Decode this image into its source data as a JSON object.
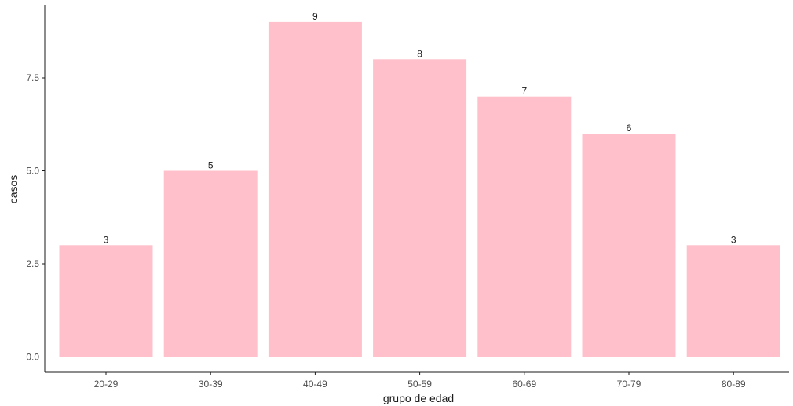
{
  "chart_data": {
    "type": "bar",
    "categories": [
      "20-29",
      "30-39",
      "40-49",
      "50-59",
      "60-69",
      "70-79",
      "80-89"
    ],
    "values": [
      3,
      5,
      9,
      8,
      7,
      6,
      3
    ],
    "data_labels": [
      "3",
      "5",
      "9",
      "8",
      "7",
      "6",
      "3"
    ],
    "title": "",
    "xlabel": "grupo de edad",
    "ylabel": "casos",
    "ylim": [
      0,
      9.45
    ],
    "yticks": [
      0,
      2.5,
      5,
      7.5
    ],
    "ytick_labels": [
      "0.0",
      "2.5",
      "5.0",
      "7.5"
    ],
    "grid": false,
    "legend": "none",
    "colors": {
      "bar": "#ffc0cb",
      "axis": "#1a1a1a",
      "tick_text": "#4d4d4d",
      "label_text": "#1a1a1a"
    }
  }
}
